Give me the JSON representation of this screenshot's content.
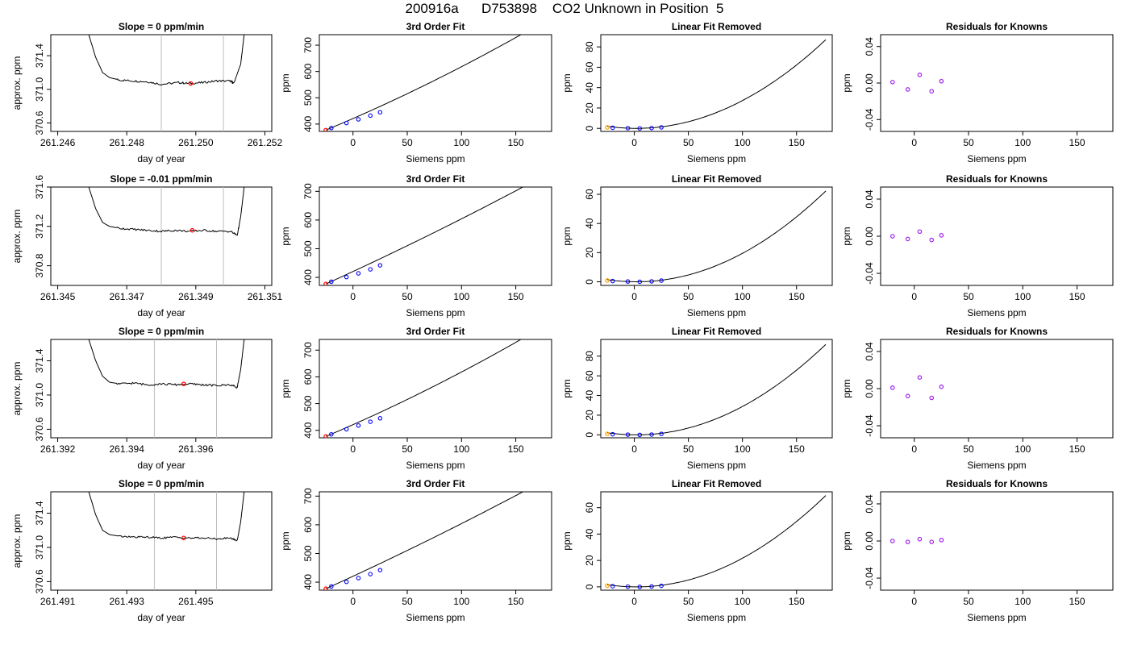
{
  "figure": {
    "title": "200916a      D753898    CO2 Unknown in Position  5"
  },
  "colors": {
    "axis": "#000000",
    "line": "#000000",
    "window_marker": "#bebebe",
    "known_point": "#0000ff",
    "unknown_point": "#ff0000",
    "residual_point": "#a020f0",
    "extra_point": "#ffa500"
  },
  "chart_data": [
    {
      "row": 1,
      "type": "line",
      "title": "Slope =  0  ppm/min",
      "xlabel": "day of year",
      "ylabel": "approx. ppm",
      "xlim": [
        261.2458,
        261.2522
      ],
      "ylim": [
        370.5,
        371.65
      ],
      "xticks": [
        261.246,
        261.248,
        261.25,
        261.252
      ],
      "xtick_labels": [
        "261.246",
        "261.248",
        "261.250",
        "261.252"
      ],
      "yticks": [
        370.6,
        371.0,
        371.4
      ],
      "ytick_labels": [
        "370.6",
        "371.0",
        "371.4"
      ],
      "window_x": [
        261.249,
        261.2508
      ],
      "trace": {
        "start": 261.2469,
        "end": 261.2514,
        "left_spike_until": 261.2474,
        "left_settle": 261.2477,
        "right_rise_from": 261.25115,
        "level": 371.1,
        "noise": 0.012,
        "points": [
          [
            261.2469,
            371.65
          ],
          [
            261.2471,
            371.38
          ],
          [
            261.2473,
            371.2
          ],
          [
            261.2475,
            371.14
          ],
          [
            261.2478,
            371.11
          ],
          [
            261.2482,
            371.1
          ],
          [
            261.2486,
            371.09
          ],
          [
            261.249,
            371.06
          ],
          [
            261.2495,
            371.08
          ],
          [
            261.2498,
            371.07
          ],
          [
            261.2502,
            371.08
          ],
          [
            261.2506,
            371.1
          ],
          [
            261.251,
            371.1
          ],
          [
            261.2511,
            371.07
          ],
          [
            261.2513,
            371.3
          ],
          [
            261.2514,
            371.65
          ]
        ]
      },
      "mean_point": [
        261.24985,
        371.07
      ]
    },
    {
      "row": 1,
      "type": "line",
      "title": "3rd Order Fit",
      "xlabel": "Siemens ppm",
      "ylabel": "ppm",
      "xlim": [
        -31,
        183
      ],
      "ylim": [
        372,
        740
      ],
      "xticks": [
        0,
        50,
        100,
        150
      ],
      "xtick_labels": [
        "0",
        "50",
        "100",
        "150"
      ],
      "yticks": [
        400,
        500,
        600,
        700
      ],
      "ytick_labels": [
        "400",
        "500",
        "600",
        "700"
      ],
      "curve": {
        "x0": -25,
        "y0": 377,
        "slope": 1.72,
        "quad": 0.00167,
        "x_end": 178
      },
      "known_points": {
        "x": [
          -20,
          -6,
          5,
          16,
          25
        ],
        "y": [
          385,
          404,
          418,
          432,
          445
        ]
      },
      "unknown_point": [
        -25,
        377
      ]
    },
    {
      "row": 1,
      "type": "line",
      "title": "Linear Fit Removed",
      "xlabel": "Siemens ppm",
      "ylabel": "ppm",
      "xlim": [
        -31,
        183
      ],
      "ylim": [
        -3,
        92
      ],
      "xticks": [
        0,
        50,
        100,
        150
      ],
      "xtick_labels": [
        "0",
        "50",
        "100",
        "150"
      ],
      "yticks": [
        0,
        20,
        40,
        60,
        80
      ],
      "ytick_labels": [
        "0",
        "20",
        "40",
        "60",
        "80"
      ],
      "curve": {
        "vertex_x": 2,
        "amplitude": 88,
        "x_end": 178
      },
      "known_points": {
        "x": [
          -20,
          -6,
          5,
          16,
          25
        ],
        "y": [
          0.6,
          0.2,
          0.0,
          0.3,
          1.0
        ]
      },
      "extra_point": [
        -25,
        1.0
      ]
    },
    {
      "row": 1,
      "type": "scatter",
      "title": "Residuals for Knowns",
      "xlabel": "Siemens ppm",
      "ylabel": "ppm",
      "xlim": [
        -31,
        183
      ],
      "ylim": [
        -0.053,
        0.053
      ],
      "xticks": [
        0,
        50,
        100,
        150
      ],
      "xtick_labels": [
        "0",
        "50",
        "100",
        "150"
      ],
      "yticks": [
        -0.04,
        0,
        0.04
      ],
      "ytick_labels": [
        "-0.04",
        "0.00",
        "0.04"
      ],
      "points": {
        "x": [
          -20,
          -6,
          5,
          16,
          25
        ],
        "y": [
          0.001,
          -0.007,
          0.009,
          -0.009,
          0.002
        ]
      }
    },
    {
      "row": 2,
      "type": "line",
      "title": "Slope =  -0.01  ppm/min",
      "xlabel": "day of year",
      "ylabel": "approx. ppm",
      "xlim": [
        261.3448,
        261.3512
      ],
      "ylim": [
        370.6,
        371.6
      ],
      "xticks": [
        261.345,
        261.347,
        261.349,
        261.351
      ],
      "xtick_labels": [
        "261.345",
        "261.347",
        "261.349",
        "261.351"
      ],
      "yticks": [
        370.8,
        371.2,
        371.6
      ],
      "ytick_labels": [
        "370.8",
        "371.2",
        "371.6"
      ],
      "window_x": [
        261.348,
        261.3498
      ],
      "trace": {
        "start": 261.3459,
        "end": 261.3504,
        "left_spike_until": 261.3464,
        "left_settle": 261.3467,
        "right_rise_from": 261.35025,
        "level": 371.16,
        "noise": 0.01,
        "points": [
          [
            261.3459,
            371.6
          ],
          [
            261.3461,
            371.38
          ],
          [
            261.3463,
            371.24
          ],
          [
            261.3465,
            371.2
          ],
          [
            261.3468,
            371.18
          ],
          [
            261.3472,
            371.17
          ],
          [
            261.3476,
            371.16
          ],
          [
            261.348,
            371.15
          ],
          [
            261.3484,
            371.16
          ],
          [
            261.3488,
            371.15
          ],
          [
            261.3492,
            371.16
          ],
          [
            261.3496,
            371.15
          ],
          [
            261.35,
            371.15
          ],
          [
            261.3502,
            371.11
          ],
          [
            261.3503,
            371.3
          ],
          [
            261.3504,
            371.6
          ]
        ]
      },
      "mean_point": [
        261.3489,
        371.16
      ]
    },
    {
      "row": 2,
      "type": "line",
      "title": "3rd Order Fit",
      "xlabel": "Siemens ppm",
      "ylabel": "ppm",
      "xlim": [
        -31,
        183
      ],
      "ylim": [
        372,
        715
      ],
      "xticks": [
        0,
        50,
        100,
        150
      ],
      "xtick_labels": [
        "0",
        "50",
        "100",
        "150"
      ],
      "yticks": [
        400,
        500,
        600,
        700
      ],
      "ytick_labels": [
        "400",
        "500",
        "600",
        "700"
      ],
      "curve": {
        "x0": -25,
        "y0": 377,
        "slope": 1.72,
        "quad": 0.00078,
        "x_end": 178
      },
      "known_points": {
        "x": [
          -20,
          -6,
          5,
          16,
          25
        ],
        "y": [
          385,
          401,
          414,
          428,
          442
        ]
      },
      "unknown_point": [
        -25,
        377
      ]
    },
    {
      "row": 2,
      "type": "line",
      "title": "Linear Fit Removed",
      "xlabel": "Siemens ppm",
      "ylabel": "ppm",
      "xlim": [
        -31,
        183
      ],
      "ylim": [
        -2.5,
        65
      ],
      "xticks": [
        0,
        50,
        100,
        150
      ],
      "xtick_labels": [
        "0",
        "50",
        "100",
        "150"
      ],
      "yticks": [
        0,
        20,
        40,
        60
      ],
      "ytick_labels": [
        "0",
        "20",
        "40",
        "60"
      ],
      "curve": {
        "vertex_x": 2,
        "amplitude": 63,
        "x_end": 178
      },
      "known_points": {
        "x": [
          -20,
          -6,
          5,
          16,
          25
        ],
        "y": [
          0.5,
          0.2,
          0.0,
          0.3,
          0.8
        ]
      },
      "extra_point": [
        -25,
        0.9
      ]
    },
    {
      "row": 2,
      "type": "scatter",
      "title": "Residuals for Knowns",
      "xlabel": "Siemens ppm",
      "ylabel": "ppm",
      "xlim": [
        -31,
        183
      ],
      "ylim": [
        -0.053,
        0.053
      ],
      "xticks": [
        0,
        50,
        100,
        150
      ],
      "xtick_labels": [
        "0",
        "50",
        "100",
        "150"
      ],
      "yticks": [
        -0.04,
        0,
        0.04
      ],
      "ytick_labels": [
        "-0.04",
        "0.00",
        "0.04"
      ],
      "points": {
        "x": [
          -20,
          -6,
          5,
          16,
          25
        ],
        "y": [
          0.0,
          -0.003,
          0.005,
          -0.004,
          0.001
        ]
      }
    },
    {
      "row": 3,
      "type": "line",
      "title": "Slope =  0  ppm/min",
      "xlabel": "day of year",
      "ylabel": "approx. ppm",
      "xlim": [
        261.3918,
        261.3982
      ],
      "ylim": [
        370.5,
        371.65
      ],
      "xticks": [
        261.392,
        261.394,
        261.396
      ],
      "xtick_labels": [
        "261.392",
        "261.394",
        "261.396"
      ],
      "yticks": [
        370.6,
        371.0,
        371.4
      ],
      "ytick_labels": [
        "370.6",
        "371.0",
        "371.4"
      ],
      "window_x": [
        261.3948,
        261.3966
      ],
      "trace": {
        "start": 261.3929,
        "end": 261.3974,
        "left_spike_until": 261.3934,
        "left_settle": 261.3937,
        "right_rise_from": 261.39725,
        "level": 371.13,
        "noise": 0.012,
        "points": [
          [
            261.3929,
            371.65
          ],
          [
            261.3931,
            371.4
          ],
          [
            261.3933,
            371.22
          ],
          [
            261.3935,
            371.15
          ],
          [
            261.3938,
            371.13
          ],
          [
            261.3942,
            371.14
          ],
          [
            261.3946,
            371.12
          ],
          [
            261.395,
            371.13
          ],
          [
            261.3954,
            371.12
          ],
          [
            261.3958,
            371.13
          ],
          [
            261.3962,
            371.12
          ],
          [
            261.3966,
            371.11
          ],
          [
            261.397,
            371.12
          ],
          [
            261.3972,
            371.09
          ],
          [
            261.3973,
            371.3
          ],
          [
            261.3974,
            371.65
          ]
        ]
      },
      "mean_point": [
        261.39565,
        371.13
      ]
    },
    {
      "row": 3,
      "type": "line",
      "title": "3rd Order Fit",
      "xlabel": "Siemens ppm",
      "ylabel": "ppm",
      "xlim": [
        -31,
        183
      ],
      "ylim": [
        372,
        740
      ],
      "xticks": [
        0,
        50,
        100,
        150
      ],
      "xtick_labels": [
        "0",
        "50",
        "100",
        "150"
      ],
      "yticks": [
        400,
        500,
        600,
        700
      ],
      "ytick_labels": [
        "400",
        "500",
        "600",
        "700"
      ],
      "curve": {
        "x0": -25,
        "y0": 377,
        "slope": 1.72,
        "quad": 0.00167,
        "x_end": 178
      },
      "known_points": {
        "x": [
          -20,
          -6,
          5,
          16,
          25
        ],
        "y": [
          385,
          404,
          418,
          432,
          445
        ]
      },
      "unknown_point": [
        -25,
        377
      ]
    },
    {
      "row": 3,
      "type": "line",
      "title": "Linear Fit Removed",
      "xlabel": "Siemens ppm",
      "ylabel": "ppm",
      "xlim": [
        -31,
        183
      ],
      "ylim": [
        -3,
        97
      ],
      "xticks": [
        0,
        50,
        100,
        150
      ],
      "xtick_labels": [
        "0",
        "50",
        "100",
        "150"
      ],
      "yticks": [
        0,
        20,
        40,
        60,
        80
      ],
      "ytick_labels": [
        "0",
        "20",
        "40",
        "60",
        "80"
      ],
      "curve": {
        "vertex_x": 2,
        "amplitude": 93,
        "x_end": 178
      },
      "known_points": {
        "x": [
          -20,
          -6,
          5,
          16,
          25
        ],
        "y": [
          0.6,
          0.2,
          0.0,
          0.3,
          1.0
        ]
      },
      "extra_point": [
        -25,
        1.0
      ]
    },
    {
      "row": 3,
      "type": "scatter",
      "title": "Residuals for Knowns",
      "xlabel": "Siemens ppm",
      "ylabel": "ppm",
      "xlim": [
        -31,
        183
      ],
      "ylim": [
        -0.053,
        0.053
      ],
      "xticks": [
        0,
        50,
        100,
        150
      ],
      "xtick_labels": [
        "0",
        "50",
        "100",
        "150"
      ],
      "yticks": [
        -0.04,
        0,
        0.04
      ],
      "ytick_labels": [
        "-0.04",
        "0.00",
        "0.04"
      ],
      "points": {
        "x": [
          -20,
          -6,
          5,
          16,
          25
        ],
        "y": [
          0.001,
          -0.008,
          0.012,
          -0.01,
          0.002
        ]
      }
    },
    {
      "row": 4,
      "type": "line",
      "title": "Slope =  0  ppm/min",
      "xlabel": "day of year",
      "ylabel": "approx. ppm",
      "xlim": [
        261.4908,
        261.4972
      ],
      "ylim": [
        370.5,
        371.65
      ],
      "xticks": [
        261.491,
        261.493,
        261.495
      ],
      "xtick_labels": [
        "261.491",
        "261.493",
        "261.495"
      ],
      "yticks": [
        370.6,
        371.0,
        371.4
      ],
      "ytick_labels": [
        "370.6",
        "371.0",
        "371.4"
      ],
      "window_x": [
        261.4938,
        261.4956
      ],
      "trace": {
        "start": 261.4919,
        "end": 261.4964,
        "left_spike_until": 261.4924,
        "left_settle": 261.4927,
        "right_rise_from": 261.49625,
        "level": 371.12,
        "noise": 0.01,
        "points": [
          [
            261.4919,
            371.65
          ],
          [
            261.4921,
            371.38
          ],
          [
            261.4923,
            371.2
          ],
          [
            261.4925,
            371.15
          ],
          [
            261.4928,
            371.13
          ],
          [
            261.4932,
            371.12
          ],
          [
            261.4936,
            371.12
          ],
          [
            261.494,
            371.11
          ],
          [
            261.4944,
            371.12
          ],
          [
            261.4948,
            371.11
          ],
          [
            261.4952,
            371.11
          ],
          [
            261.4956,
            371.1
          ],
          [
            261.496,
            371.11
          ],
          [
            261.4962,
            371.08
          ],
          [
            261.4963,
            371.3
          ],
          [
            261.4964,
            371.65
          ]
        ]
      },
      "mean_point": [
        261.49465,
        371.11
      ]
    },
    {
      "row": 4,
      "type": "line",
      "title": "3rd Order Fit",
      "xlabel": "Siemens ppm",
      "ylabel": "ppm",
      "xlim": [
        -31,
        183
      ],
      "ylim": [
        372,
        715
      ],
      "xticks": [
        0,
        50,
        100,
        150
      ],
      "xtick_labels": [
        "0",
        "50",
        "100",
        "150"
      ],
      "yticks": [
        400,
        500,
        600,
        700
      ],
      "ytick_labels": [
        "400",
        "500",
        "600",
        "700"
      ],
      "curve": {
        "x0": -25,
        "y0": 377,
        "slope": 1.72,
        "quad": 0.00078,
        "x_end": 178
      },
      "known_points": {
        "x": [
          -20,
          -6,
          5,
          16,
          25
        ],
        "y": [
          385,
          401,
          414,
          428,
          442
        ]
      },
      "unknown_point": [
        -25,
        377
      ]
    },
    {
      "row": 4,
      "type": "line",
      "title": "Linear Fit Removed",
      "xlabel": "Siemens ppm",
      "ylabel": "ppm",
      "xlim": [
        -31,
        183
      ],
      "ylim": [
        -2.5,
        72
      ],
      "xticks": [
        0,
        50,
        100,
        150
      ],
      "xtick_labels": [
        "0",
        "50",
        "100",
        "150"
      ],
      "yticks": [
        0,
        20,
        40,
        60
      ],
      "ytick_labels": [
        "0",
        "20",
        "40",
        "60"
      ],
      "curve": {
        "vertex_x": 2,
        "amplitude": 70,
        "x_end": 178
      },
      "known_points": {
        "x": [
          -20,
          -6,
          5,
          16,
          25
        ],
        "y": [
          0.5,
          0.2,
          0.0,
          0.3,
          0.8
        ]
      },
      "extra_point": [
        -25,
        0.9
      ]
    },
    {
      "row": 4,
      "type": "scatter",
      "title": "Residuals for Knowns",
      "xlabel": "Siemens ppm",
      "ylabel": "ppm",
      "xlim": [
        -31,
        183
      ],
      "ylim": [
        -0.053,
        0.053
      ],
      "xticks": [
        0,
        50,
        100,
        150
      ],
      "xtick_labels": [
        "0",
        "50",
        "100",
        "150"
      ],
      "yticks": [
        -0.04,
        0,
        0.04
      ],
      "ytick_labels": [
        "-0.04",
        "0.00",
        "0.04"
      ],
      "points": {
        "x": [
          -20,
          -6,
          5,
          16,
          25
        ],
        "y": [
          0.0,
          -0.001,
          0.002,
          -0.001,
          0.001
        ]
      }
    }
  ]
}
